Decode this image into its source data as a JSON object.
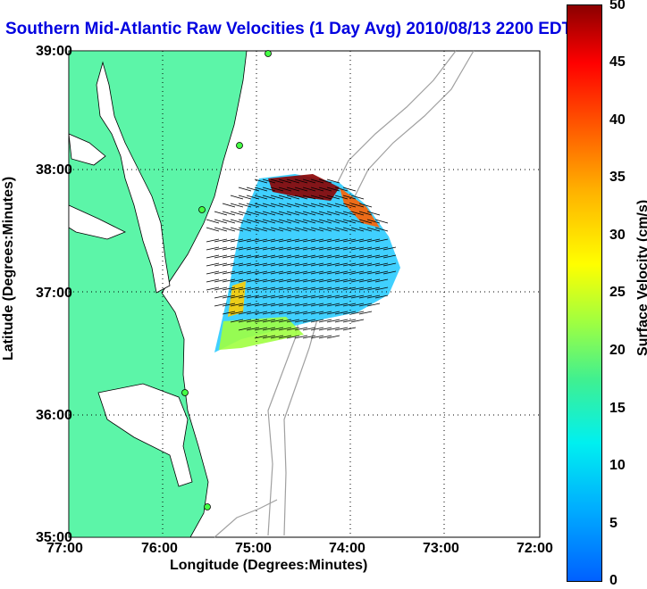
{
  "title": "Southern Mid-Atlantic Raw Velocities (1 Day Avg) 2010/08/13 2200 EDT",
  "axes": {
    "xlabel": "Longitude (Degrees:Minutes)",
    "ylabel": "Latitude (Degrees:Minutes)",
    "xticks": [
      "77:00",
      "76:00",
      "75:00",
      "74:00",
      "73:00",
      "72:00"
    ],
    "yticks": [
      "39:00",
      "38:00",
      "37:00",
      "36:00",
      "35:00"
    ]
  },
  "colorbar": {
    "label": "Surface Velocity (cm/s)",
    "ticks": [
      "50",
      "45",
      "40",
      "35",
      "30",
      "25",
      "20",
      "15",
      "10",
      "5",
      "0"
    ]
  },
  "colors": {
    "land": "#5cf5a8",
    "title": "#0000e0",
    "contour": "#a0a0a0"
  }
}
